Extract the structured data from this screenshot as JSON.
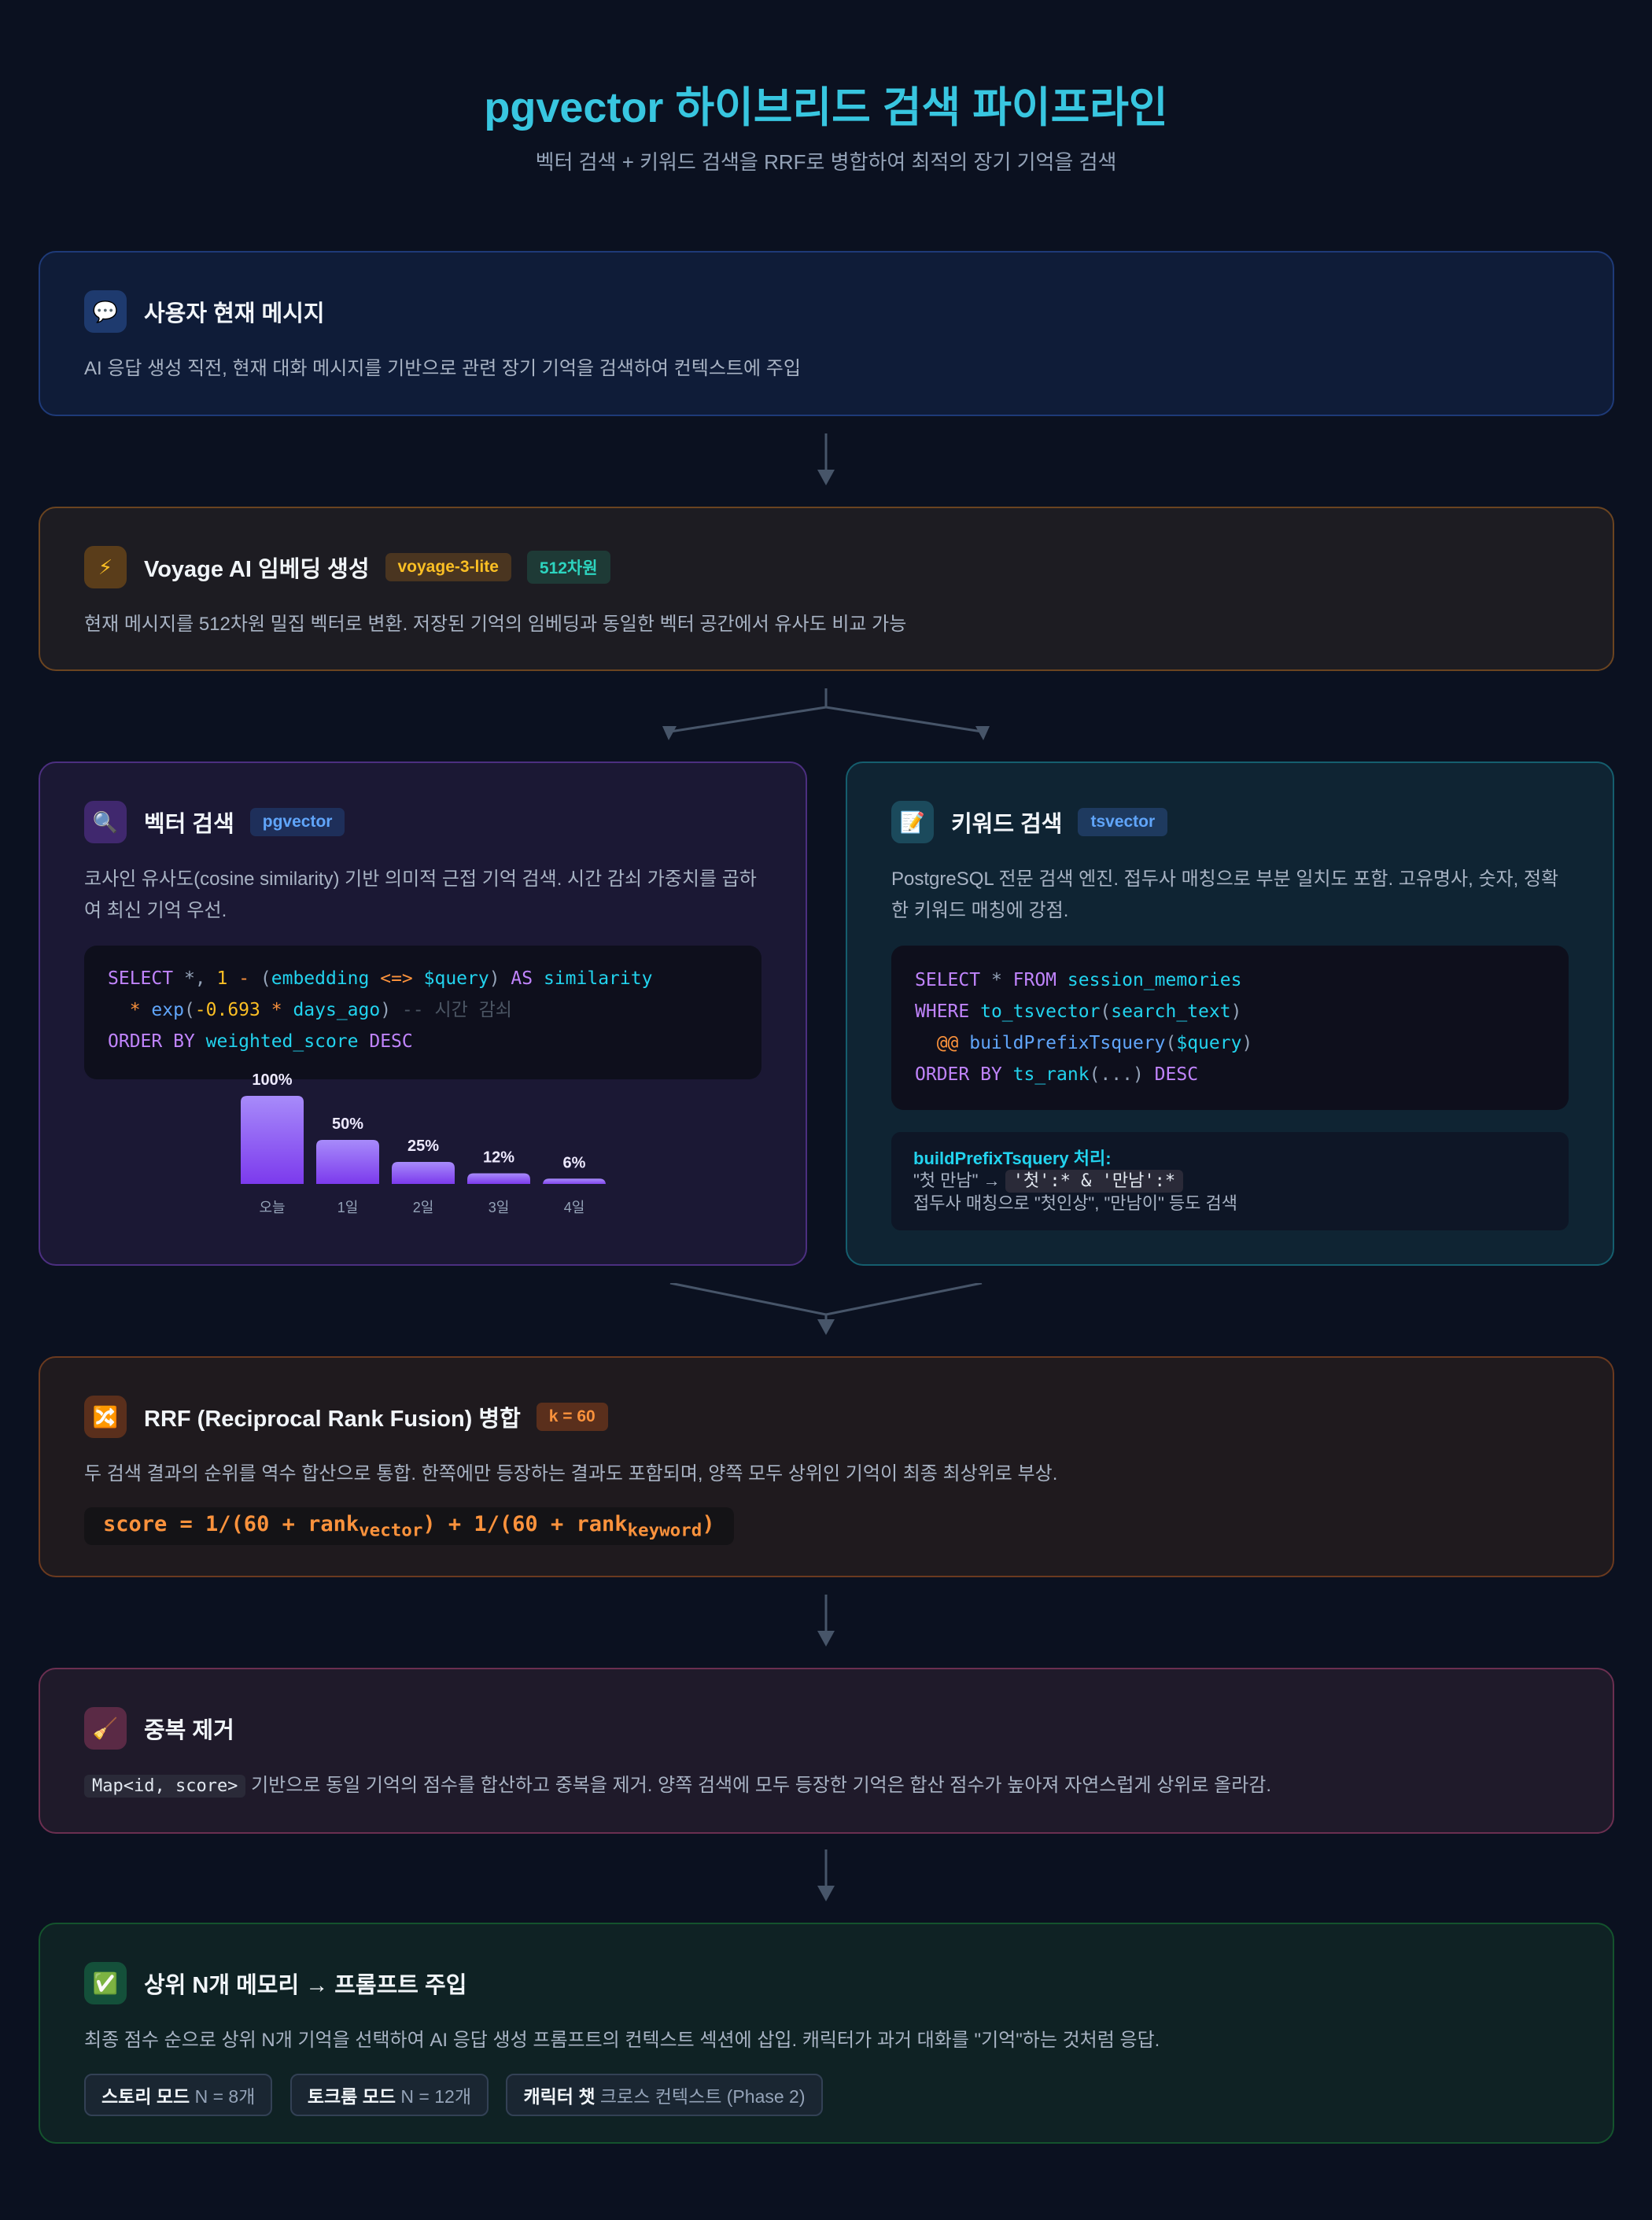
{
  "header": {
    "title": "pgvector 하이브리드 검색 파이프라인",
    "subtitle": "벡터 검색 + 키워드 검색을 RRF로 병합하여 최적의 장기 기억을 검색"
  },
  "step1": {
    "icon": "speech-bubble-icon",
    "title": "사용자 현재 메시지",
    "desc": "AI 응답 생성 직전, 현재 대화 메시지를 기반으로 관련 장기 기억을 검색하여 컨텍스트에 주입"
  },
  "step2": {
    "icon": "lightning-icon",
    "title": "Voyage AI 임베딩 생성",
    "badges": [
      "voyage-3-lite",
      "512차원"
    ],
    "desc": "현재 메시지를 512차원 밀집 벡터로 변환. 저장된 기억의 임베딩과 동일한 벡터 공간에서 유사도 비교 가능"
  },
  "vector": {
    "icon": "magnifier-icon",
    "title": "벡터 검색",
    "badge": "pgvector",
    "desc": "코사인 유사도(cosine similarity) 기반 의미적 근접 기억 검색. 시간 감쇠 가중치를 곱하여 최신 기억 우선.",
    "code": {
      "l1": [
        "SELECT",
        " *, ",
        "1",
        " - ",
        "(",
        "embedding",
        " <=> ",
        "$query",
        ")",
        " AS ",
        "similarity"
      ],
      "l2": [
        "  * ",
        "exp",
        "(",
        "-0.693",
        " * ",
        "days_ago",
        ")",
        " -- 시간 감쇠"
      ],
      "l3": [
        "ORDER BY",
        " weighted_score",
        " DESC"
      ]
    }
  },
  "keyword": {
    "icon": "memo-icon",
    "title": "키워드 검색",
    "badge": "tsvector",
    "desc": "PostgreSQL 전문 검색 엔진. 접두사 매칭으로 부분 일치도 포함. 고유명사, 숫자, 정확한 키워드 매칭에 강점.",
    "code": {
      "l1": [
        "SELECT",
        " * ",
        "FROM",
        " session_memories"
      ],
      "l2": [
        "WHERE",
        " to_tsvector",
        "(",
        "search_text",
        ")"
      ],
      "l3": [
        "  @@",
        " buildPrefixTsquery",
        "(",
        "$query",
        ")"
      ],
      "l4": [
        "ORDER BY",
        " ts_rank",
        "(...)",
        " DESC"
      ]
    },
    "info": {
      "title": "buildPrefixTsquery 처리:",
      "from": "\"첫 만남\" → ",
      "to": "'첫':* & '만남':*",
      "note": "접두사 매칭으로 \"첫인상\", \"만남이\" 등도 검색"
    }
  },
  "chart_data": {
    "type": "bar",
    "categories": [
      "오늘",
      "1일",
      "2일",
      "3일",
      "4일"
    ],
    "values": [
      100,
      50,
      25,
      12,
      6
    ],
    "labels": [
      "100%",
      "50%",
      "25%",
      "12%",
      "6%"
    ],
    "ylim": [
      0,
      100
    ],
    "colors": [
      "#a78bfa",
      "#7c3aed"
    ]
  },
  "rrf": {
    "icon": "shuffle-icon",
    "title": "RRF (Reciprocal Rank Fusion) 병합",
    "badge": "k = 60",
    "desc": "두 검색 결과의 순위를 역수 합산으로 통합. 한쪽에만 등장하는 결과도 포함되며, 양쪽 모두 상위인 기억이 최종 최상위로 부상.",
    "formula": {
      "a": "score = 1/(60 + rank",
      "sub1": "vector",
      "b": ") + 1/(60 + rank",
      "sub2": "keyword",
      "c": ")"
    }
  },
  "dedup": {
    "icon": "broom-icon",
    "title": "중복 제거",
    "code": "Map<id, score>",
    "desc": " 기반으로 동일 기억의 점수를 합산하고 중복을 제거. 양쪽 검색에 모두 등장한 기억은 합산 점수가 높아져 자연스럽게 상위로 올라감."
  },
  "final": {
    "icon": "check-mark-icon",
    "title": "상위 N개 메모리 → 프롬프트 주입",
    "desc": "최종 점수 순으로 상위 N개 기억을 선택하여 AI 응답 생성 프롬프트의 컨텍스트 섹션에 삽입. 캐릭터가 과거 대화를 \"기억\"하는 것처럼 응답.",
    "chips": [
      {
        "bold": "스토리 모드",
        "rest": " N = 8개"
      },
      {
        "bold": "토크룸 모드",
        "rest": " N = 12개"
      },
      {
        "bold": "캐릭터 챗",
        "rest": " 크로스 컨텍스트 (Phase 2)"
      }
    ]
  }
}
